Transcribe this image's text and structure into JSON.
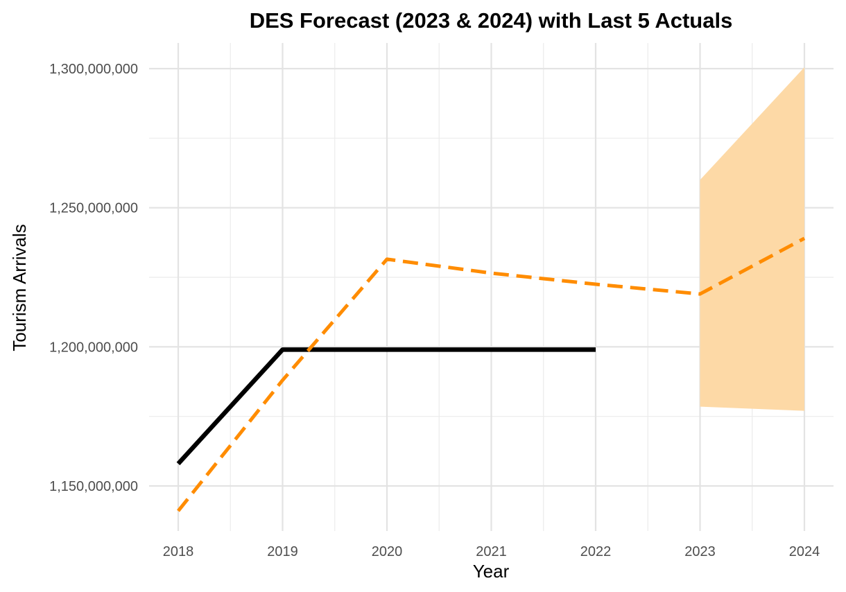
{
  "chart_data": {
    "type": "line",
    "title": "DES Forecast (2023 & 2024) with Last 5 Actuals",
    "xlabel": "Year",
    "ylabel": "Tourism Arrivals",
    "xlim": [
      2018,
      2024
    ],
    "ylim": [
      1135000000,
      1309000000
    ],
    "x_ticks": [
      2018,
      2019,
      2020,
      2021,
      2022,
      2023,
      2024
    ],
    "x_tick_labels": [
      "2018",
      "2019",
      "2020",
      "2021",
      "2022",
      "2023",
      "2024"
    ],
    "y_ticks": [
      1150000000,
      1200000000,
      1250000000,
      1300000000
    ],
    "y_tick_labels": [
      "1,150,000,000",
      "1,200,000,000",
      "1,250,000,000",
      "1,300,000,000"
    ],
    "grid": true,
    "legend": "none",
    "series": [
      {
        "style": "solid",
        "color": "#000000",
        "x": [
          2018,
          2019,
          2020,
          2021,
          2022
        ],
        "values": [
          1158000000,
          1199000000,
          1199000000,
          1199000000,
          1199000000
        ]
      },
      {
        "style": "dashed",
        "color": "#ff8c00",
        "x": [
          2018,
          2019,
          2020,
          2021,
          2022,
          2023,
          2024
        ],
        "values": [
          1141000000,
          1188000000,
          1231500000,
          1226500000,
          1222500000,
          1219000000,
          1239000000
        ]
      }
    ],
    "band": {
      "color": "#fdd9a6",
      "x": [
        2023,
        2024
      ],
      "lower": [
        1178500000,
        1177000000
      ],
      "upper": [
        1260000000,
        1300500000
      ]
    }
  }
}
